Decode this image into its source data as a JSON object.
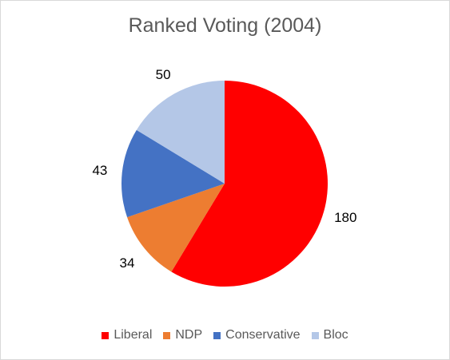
{
  "chart_data": {
    "type": "pie",
    "title": "Ranked Voting (2004)",
    "categories": [
      "Liberal",
      "NDP",
      "Conservative",
      "Bloc"
    ],
    "values": [
      180,
      34,
      43,
      50
    ],
    "colors": [
      "#ff0000",
      "#ed7d31",
      "#4472c4",
      "#b4c7e7"
    ],
    "data_labels": [
      "180",
      "34",
      "43",
      "50"
    ],
    "legend_position": "bottom"
  }
}
